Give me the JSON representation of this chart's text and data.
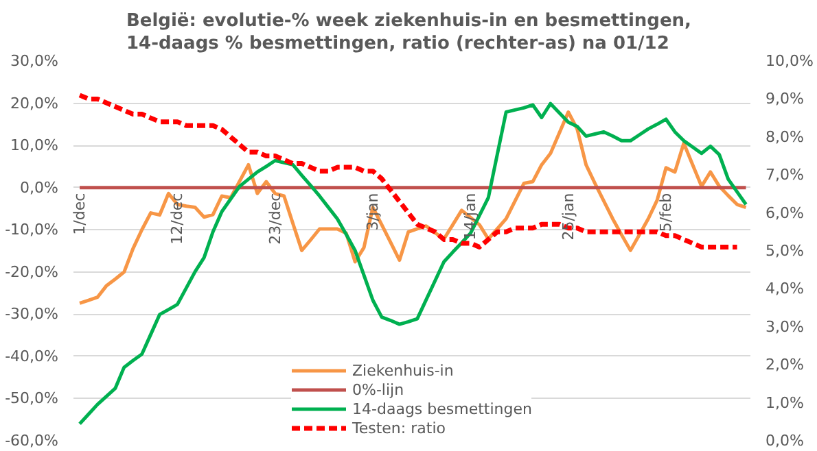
{
  "chart_data": {
    "type": "line",
    "title": "België: evolutie-%  week ziekenhuis-in en besmettingen,\n14-daags % besmettingen, ratio (rechter-as) na 01/12",
    "categories": [
      "1/dec",
      null,
      null,
      null,
      null,
      null,
      null,
      null,
      null,
      null,
      null,
      "12/dec",
      null,
      null,
      null,
      null,
      null,
      null,
      null,
      null,
      null,
      null,
      "23/dec",
      null,
      null,
      null,
      null,
      null,
      null,
      null,
      null,
      null,
      null,
      "3/jan",
      null,
      null,
      null,
      null,
      null,
      null,
      null,
      null,
      null,
      null,
      "14/jan",
      null,
      null,
      null,
      null,
      null,
      null,
      null,
      null,
      null,
      null,
      "25/jan",
      null,
      null,
      null,
      null,
      null,
      null,
      null,
      null,
      null,
      null,
      "5/feb",
      null,
      null,
      null,
      null,
      null,
      null,
      null,
      null,
      null
    ],
    "ylim": [
      -60,
      30
    ],
    "yticks": [
      {
        "value": -60,
        "label": "-60,0%"
      },
      {
        "value": -50,
        "label": "-50,0%"
      },
      {
        "value": -40,
        "label": "-40,0%"
      },
      {
        "value": -30,
        "label": "-30,0%"
      },
      {
        "value": -20,
        "label": "-20,0%"
      },
      {
        "value": -10,
        "label": "-10,0%"
      },
      {
        "value": 0,
        "label": "0,0%"
      },
      {
        "value": 10,
        "label": "10,0%"
      },
      {
        "value": 20,
        "label": "20,0%"
      },
      {
        "value": 30,
        "label": "30,0%"
      }
    ],
    "y2lim": [
      0,
      10
    ],
    "y2ticks": [
      {
        "value": 0,
        "label": "0,0%"
      },
      {
        "value": 1,
        "label": "1,0%"
      },
      {
        "value": 2,
        "label": "2,0%"
      },
      {
        "value": 3,
        "label": "3,0%"
      },
      {
        "value": 4,
        "label": "4,0%"
      },
      {
        "value": 5,
        "label": "5,0%"
      },
      {
        "value": 6,
        "label": "6,0%"
      },
      {
        "value": 7,
        "label": "7,0%"
      },
      {
        "value": 8,
        "label": "8,0%"
      },
      {
        "value": 9,
        "label": "9,0%"
      },
      {
        "value": 10,
        "label": "10,0%"
      }
    ],
    "grid": "y",
    "legend": "bottom",
    "marker": "none",
    "series": [
      {
        "name": "Ziekenhuis-in",
        "color": "#f79646",
        "line_style": "solid",
        "values": [
          -27.4,
          -26.7,
          -26,
          -23.3,
          -21.7,
          -20,
          -14.5,
          -10,
          -6,
          -6.5,
          -1.4,
          -4,
          -4.4,
          -4.7,
          -7,
          -6.4,
          -2,
          -2.4,
          1.5,
          5.4,
          -1.4,
          1.4,
          -1.4,
          -2,
          -8.5,
          -14.9,
          -12.4,
          -9.8,
          -9.8,
          -9.8,
          -10.8,
          -17.6,
          -14.2,
          -4.7,
          -8.8,
          -13,
          -17.2,
          -10.5,
          -9.8,
          -9.1,
          -10.7,
          -12.2,
          -8.8,
          -5.4,
          -7.1,
          -8.8,
          -12.2,
          -9.8,
          -7.4,
          -3.2,
          1,
          1.4,
          5.4,
          8.1,
          13,
          17.9,
          13.9,
          5.4,
          1,
          -3.2,
          -7.4,
          -11.2,
          -14.9,
          -11.2,
          -7.4,
          -3,
          4.7,
          3.7,
          10.5,
          5.4,
          0.3,
          3.7,
          0.3,
          -1.9,
          -4,
          -4.7
        ]
      },
      {
        "name": "0%-lijn",
        "color": "#c0504d",
        "line_style": "solid",
        "values": [
          0,
          0,
          0,
          0,
          0,
          0,
          0,
          0,
          0,
          0,
          0,
          0,
          0,
          0,
          0,
          0,
          0,
          0,
          0,
          0,
          0,
          0,
          0,
          0,
          0,
          0,
          0,
          0,
          0,
          0,
          0,
          0,
          0,
          0,
          0,
          0,
          0,
          0,
          0,
          0,
          0,
          0,
          0,
          0,
          0,
          0,
          0,
          0,
          0,
          0,
          0,
          0,
          0,
          0,
          0,
          0,
          0,
          0,
          0,
          0,
          0,
          0,
          0,
          0,
          0,
          0,
          0,
          0,
          0,
          0,
          0,
          0,
          0,
          0,
          0,
          0
        ]
      },
      {
        "name": "14-daags besmettingen",
        "color": "#00b050",
        "line_style": "solid",
        "values": [
          -56,
          -53.7,
          -51.4,
          -49.5,
          -47.6,
          -42.6,
          -41,
          -39.5,
          -34.8,
          -30.1,
          -28.9,
          -27.7,
          -23.8,
          -19.9,
          -16.6,
          -10.5,
          -5.7,
          -2.7,
          0.3,
          2,
          3.7,
          5,
          6.4,
          5.9,
          5.4,
          2.9,
          0.5,
          -2,
          -4.7,
          -7.4,
          -11.1,
          -14.9,
          -20.8,
          -26.7,
          -30.7,
          -31.5,
          -32.4,
          -31.8,
          -31.1,
          -26.6,
          -22.1,
          -17.6,
          -15.3,
          -13.1,
          -10.8,
          -6.6,
          -2.4,
          7.8,
          17.9,
          18.4,
          18.9,
          19.6,
          16.6,
          19.9,
          17.7,
          15.5,
          14.5,
          12.2,
          12.7,
          13.2,
          12.2,
          11.1,
          11.1,
          12.5,
          13.9,
          15,
          16.2,
          13.2,
          11.1,
          9.6,
          8.1,
          9.8,
          7.8,
          2,
          -1,
          -4
        ]
      },
      {
        "name": "Testen: ratio",
        "color": "#ff0000",
        "line_style": "dashed",
        "axis": "y2",
        "values": [
          9.1,
          9.0,
          9.0,
          8.9,
          8.8,
          8.7,
          8.6,
          8.6,
          8.5,
          8.4,
          8.4,
          8.4,
          8.3,
          8.3,
          8.3,
          8.3,
          8.2,
          8.0,
          7.8,
          7.6,
          7.6,
          7.5,
          7.5,
          7.4,
          7.3,
          7.3,
          7.2,
          7.1,
          7.1,
          7.2,
          7.2,
          7.2,
          7.1,
          7.1,
          6.9,
          6.6,
          6.3,
          6.0,
          5.7,
          5.6,
          5.5,
          5.3,
          5.3,
          5.2,
          5.2,
          5.1,
          5.3,
          5.5,
          5.5,
          5.6,
          5.6,
          5.6,
          5.7,
          5.7,
          5.7,
          5.6,
          5.6,
          5.5,
          5.5,
          5.5,
          5.5,
          5.5,
          5.5,
          5.5,
          5.5,
          5.5,
          5.4,
          5.4,
          5.3,
          5.2,
          5.1,
          5.1,
          5.1,
          5.1,
          5.1,
          null
        ]
      }
    ]
  }
}
